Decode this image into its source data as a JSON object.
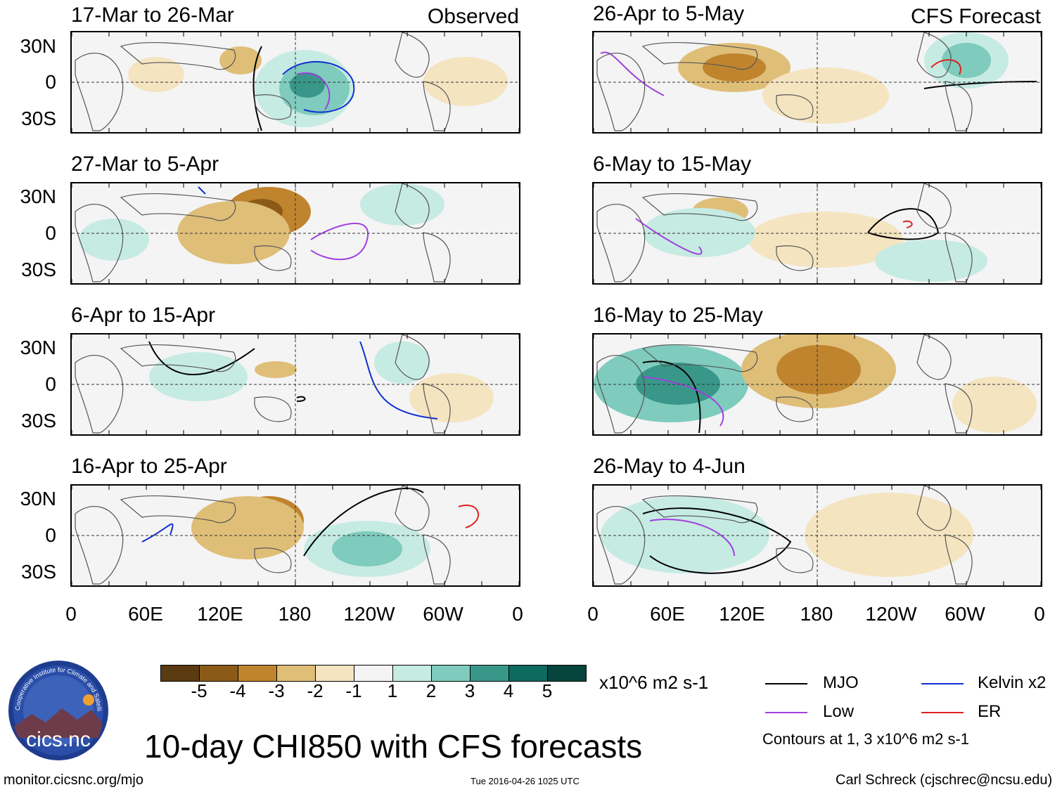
{
  "panels_left_header": "Observed",
  "panels_right_header": "CFS Forecast",
  "panels": [
    {
      "title": "17-Mar to 26-Mar"
    },
    {
      "title": "27-Mar to 5-Apr"
    },
    {
      "title": "6-Apr to 15-Apr"
    },
    {
      "title": "16-Apr to 25-Apr"
    },
    {
      "title": "26-Apr to 5-May"
    },
    {
      "title": "6-May to 15-May"
    },
    {
      "title": "16-May to 25-May"
    },
    {
      "title": "26-May to 4-Jun"
    }
  ],
  "y_ticks": [
    "30N",
    "0",
    "30S"
  ],
  "x_ticks": [
    "0",
    "60E",
    "120E",
    "180",
    "120W",
    "60W",
    "0"
  ],
  "colorbar": {
    "labels": [
      "-5",
      "-4",
      "-3",
      "-2",
      "-1",
      "1",
      "2",
      "3",
      "4",
      "5"
    ],
    "colors": [
      "#5a3a10",
      "#8c5a18",
      "#c0842e",
      "#dfbe78",
      "#f4e4c0",
      "#f4f4f4",
      "#c6ebe2",
      "#7fcbbd",
      "#39978a",
      "#0c6a5e",
      "#06453d"
    ],
    "units": "x10^6 m2 s-1"
  },
  "legend": {
    "mjo": "MJO",
    "kelvin": "Kelvin x2",
    "low": "Low",
    "er": "ER",
    "note": "Contours at 1, 3 x10^6 m2 s-1",
    "colors": {
      "mjo": "#000000",
      "kelvin": "#1030d0",
      "low": "#a040e0",
      "er": "#e02020"
    }
  },
  "main_title": "10-day CHI850 with CFS forecasts",
  "logo_text": "cics.nc",
  "logo_ring_text": "Cooperative Institute for Climate and Satellites",
  "footer": {
    "left": "monitor.cicsnc.org/mjo",
    "center": "Tue 2016-04-26 1025 UTC",
    "right": "Carl Schreck (cjschrec@ncsu.edu)"
  }
}
